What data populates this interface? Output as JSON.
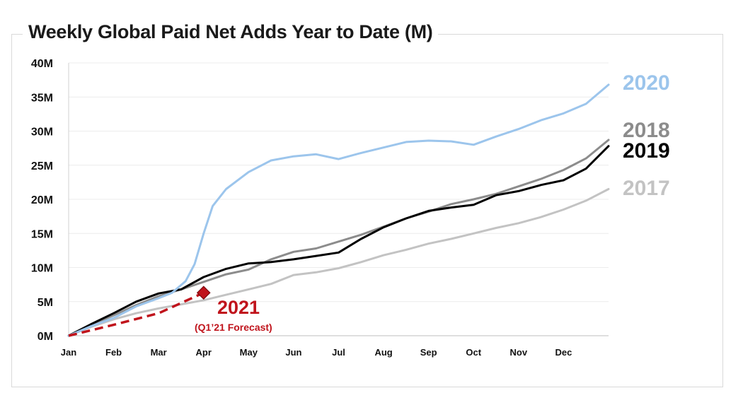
{
  "chart_data": {
    "type": "line",
    "title": "Weekly Global Paid Net Adds Year to Date (M)",
    "xlabel": "",
    "ylabel": "",
    "ylim": [
      0,
      40
    ],
    "xlim": [
      0,
      12
    ],
    "grid": true,
    "y_ticks": [
      "0M",
      "5M",
      "10M",
      "15M",
      "20M",
      "25M",
      "30M",
      "35M",
      "40M"
    ],
    "x_ticks": [
      "Jan",
      "Feb",
      "Mar",
      "Apr",
      "May",
      "Jun",
      "Jul",
      "Aug",
      "Sep",
      "Oct",
      "Nov",
      "Dec"
    ],
    "series": [
      {
        "name": "2017",
        "color": "#c3c3c3",
        "dashed": false,
        "points": [
          [
            0,
            0
          ],
          [
            0.5,
            1.3
          ],
          [
            1,
            2.4
          ],
          [
            1.5,
            3.3
          ],
          [
            2,
            4.0
          ],
          [
            2.5,
            4.6
          ],
          [
            3,
            5.2
          ],
          [
            3.5,
            6.0
          ],
          [
            4,
            6.8
          ],
          [
            4.5,
            7.6
          ],
          [
            5,
            8.9
          ],
          [
            5.5,
            9.3
          ],
          [
            6,
            9.9
          ],
          [
            6.5,
            10.8
          ],
          [
            7,
            11.8
          ],
          [
            7.5,
            12.6
          ],
          [
            8,
            13.5
          ],
          [
            8.5,
            14.2
          ],
          [
            9,
            15.0
          ],
          [
            9.5,
            15.8
          ],
          [
            10,
            16.5
          ],
          [
            10.5,
            17.4
          ],
          [
            11,
            18.5
          ],
          [
            11.5,
            19.8
          ],
          [
            12,
            21.5
          ]
        ]
      },
      {
        "name": "2018",
        "color": "#8c8c8c",
        "dashed": false,
        "points": [
          [
            0,
            0
          ],
          [
            0.5,
            1.6
          ],
          [
            1,
            3.0
          ],
          [
            1.5,
            4.5
          ],
          [
            2,
            5.8
          ],
          [
            2.5,
            6.8
          ],
          [
            3,
            7.9
          ],
          [
            3.5,
            9.0
          ],
          [
            4,
            9.7
          ],
          [
            4.5,
            11.2
          ],
          [
            5,
            12.3
          ],
          [
            5.5,
            12.8
          ],
          [
            6,
            13.8
          ],
          [
            6.5,
            14.8
          ],
          [
            7,
            16.0
          ],
          [
            7.5,
            17.2
          ],
          [
            8,
            18.2
          ],
          [
            8.5,
            19.3
          ],
          [
            9,
            20.0
          ],
          [
            9.5,
            20.8
          ],
          [
            10,
            21.9
          ],
          [
            10.5,
            23.0
          ],
          [
            11,
            24.3
          ],
          [
            11.5,
            26.0
          ],
          [
            12,
            28.7
          ]
        ]
      },
      {
        "name": "2019",
        "color": "#000000",
        "dashed": false,
        "points": [
          [
            0,
            0
          ],
          [
            0.5,
            1.7
          ],
          [
            1,
            3.3
          ],
          [
            1.5,
            5.0
          ],
          [
            2,
            6.2
          ],
          [
            2.5,
            6.8
          ],
          [
            3,
            8.6
          ],
          [
            3.5,
            9.8
          ],
          [
            4,
            10.6
          ],
          [
            4.5,
            10.8
          ],
          [
            5,
            11.2
          ],
          [
            5.5,
            11.7
          ],
          [
            6,
            12.2
          ],
          [
            6.5,
            14.2
          ],
          [
            7,
            15.9
          ],
          [
            7.5,
            17.2
          ],
          [
            8,
            18.3
          ],
          [
            8.5,
            18.8
          ],
          [
            9,
            19.2
          ],
          [
            9.5,
            20.6
          ],
          [
            10,
            21.2
          ],
          [
            10.5,
            22.1
          ],
          [
            11,
            22.8
          ],
          [
            11.5,
            24.5
          ],
          [
            12,
            27.8
          ]
        ]
      },
      {
        "name": "2020",
        "color": "#9cc5ec",
        "dashed": false,
        "points": [
          [
            0,
            0
          ],
          [
            0.5,
            1.4
          ],
          [
            1,
            2.6
          ],
          [
            1.5,
            4.3
          ],
          [
            2,
            5.5
          ],
          [
            2.3,
            6.3
          ],
          [
            2.6,
            8.0
          ],
          [
            2.8,
            10.5
          ],
          [
            3,
            15.0
          ],
          [
            3.2,
            19.0
          ],
          [
            3.5,
            21.5
          ],
          [
            4,
            24.0
          ],
          [
            4.5,
            25.7
          ],
          [
            5,
            26.3
          ],
          [
            5.5,
            26.6
          ],
          [
            6,
            25.9
          ],
          [
            6.5,
            26.8
          ],
          [
            7,
            27.6
          ],
          [
            7.5,
            28.4
          ],
          [
            8,
            28.6
          ],
          [
            8.5,
            28.5
          ],
          [
            9,
            28.0
          ],
          [
            9.5,
            29.2
          ],
          [
            10,
            30.3
          ],
          [
            10.5,
            31.6
          ],
          [
            11,
            32.6
          ],
          [
            11.5,
            34.0
          ],
          [
            12,
            36.8
          ]
        ]
      },
      {
        "name": "2021",
        "color": "#c0141c",
        "dashed": true,
        "points": [
          [
            0,
            0
          ],
          [
            1,
            1.6
          ],
          [
            2,
            3.3
          ],
          [
            3,
            6.3
          ]
        ]
      }
    ],
    "annotations": [
      {
        "series": "2021",
        "type": "marker",
        "shape": "diamond",
        "x": 3,
        "y": 6.3,
        "color": "#c0141c"
      }
    ],
    "labels": {
      "s2020": "2020",
      "s2018": "2018",
      "s2019": "2019",
      "s2017": "2017",
      "s2021": "2021",
      "s2021_sub": "(Q1’21 Forecast)"
    }
  }
}
